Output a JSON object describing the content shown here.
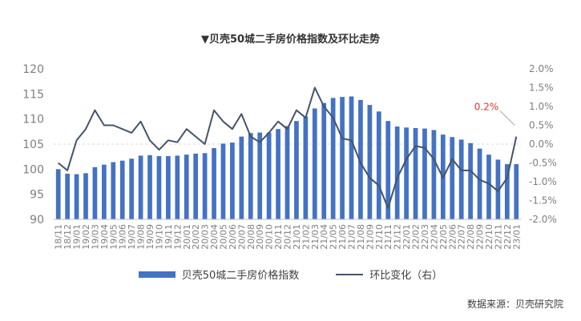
{
  "title": "▼贝壳50城二手房价格指数及环比走势",
  "source": "数据来源：贝壳研究院",
  "colors": {
    "bars": "#4472c4",
    "line": "#44546a",
    "annotation": "#e3312e",
    "axis_text": "#7f7f7f",
    "gridline": "#d9d9d9"
  },
  "chart_data": {
    "type": "bar+line",
    "categories": [
      "18/11",
      "18/12",
      "19/01",
      "19/02",
      "19/03",
      "19/04",
      "19/05",
      "19/06",
      "19/07",
      "19/08",
      "19/09",
      "19/10",
      "19/11",
      "19/12",
      "20/01",
      "20/02",
      "20/03",
      "20/04",
      "20/05",
      "20/06",
      "20/07",
      "20/08",
      "20/09",
      "20/10",
      "20/11",
      "20/12",
      "21/01",
      "21/02",
      "21/03",
      "21/04",
      "21/05",
      "21/06",
      "21/07",
      "21/08",
      "21/09",
      "21/10",
      "21/11",
      "21/12",
      "22/01",
      "22/02",
      "22/03",
      "22/04",
      "22/05",
      "22/06",
      "22/07",
      "22/08",
      "22/09",
      "22/10",
      "22/11",
      "22/12",
      "23/01"
    ],
    "series": [
      {
        "name": "贝壳50城二手房价格指数",
        "type": "bar",
        "axis": "left",
        "values": [
          100,
          99.1,
          99,
          99.2,
          100.4,
          100.9,
          101.4,
          101.7,
          102.1,
          102.7,
          102.8,
          102.6,
          102.6,
          102.7,
          102.9,
          103.1,
          103.2,
          104.2,
          105.1,
          105.3,
          106.5,
          107.2,
          107.3,
          107.3,
          108.0,
          108.6,
          109.6,
          110.5,
          112.1,
          113.2,
          114.2,
          114.4,
          114.5,
          113.8,
          112.8,
          111.5,
          109.6,
          108.5,
          108.3,
          108.2,
          108.1,
          107.8,
          106.9,
          106.4,
          105.9,
          105.2,
          104.1,
          102.9,
          101.9,
          101.0,
          101.0
        ]
      },
      {
        "name": "环比变化（右）",
        "type": "line",
        "axis": "right",
        "values": [
          -0.5,
          -0.7,
          0.1,
          0.4,
          0.9,
          0.5,
          0.5,
          0.4,
          0.3,
          0.6,
          0.1,
          -0.15,
          0.1,
          0.05,
          0.4,
          0.2,
          0.0,
          0.9,
          0.6,
          0.4,
          0.8,
          0.2,
          0.05,
          0.3,
          0.6,
          0.4,
          0.9,
          0.7,
          1.5,
          1.0,
          0.7,
          0.15,
          0.1,
          -0.5,
          -0.9,
          -1.1,
          -1.7,
          -0.9,
          -0.4,
          -0.05,
          -0.1,
          -0.4,
          -0.9,
          -0.4,
          -0.7,
          -0.7,
          -0.95,
          -1.05,
          -1.25,
          -0.9,
          0.2
        ]
      }
    ],
    "y_left": {
      "min": 90,
      "max": 120,
      "ticks": [
        "90",
        "95",
        "100",
        "105",
        "110",
        "115",
        "120"
      ]
    },
    "y_right": {
      "min": -2.0,
      "max": 2.0,
      "ticks": [
        "-2.0%",
        "-1.5%",
        "-1.0%",
        "-0.5%",
        "0.0%",
        "0.5%",
        "1.0%",
        "1.5%",
        "2.0%"
      ]
    },
    "annotation": {
      "text": "0.2%",
      "category": "23/01"
    },
    "legend": {
      "position": "bottom",
      "entries": [
        "贝壳50城二手房价格指数",
        "环比变化（右）"
      ]
    },
    "grid": false,
    "zero_reference_line": "dashed"
  }
}
